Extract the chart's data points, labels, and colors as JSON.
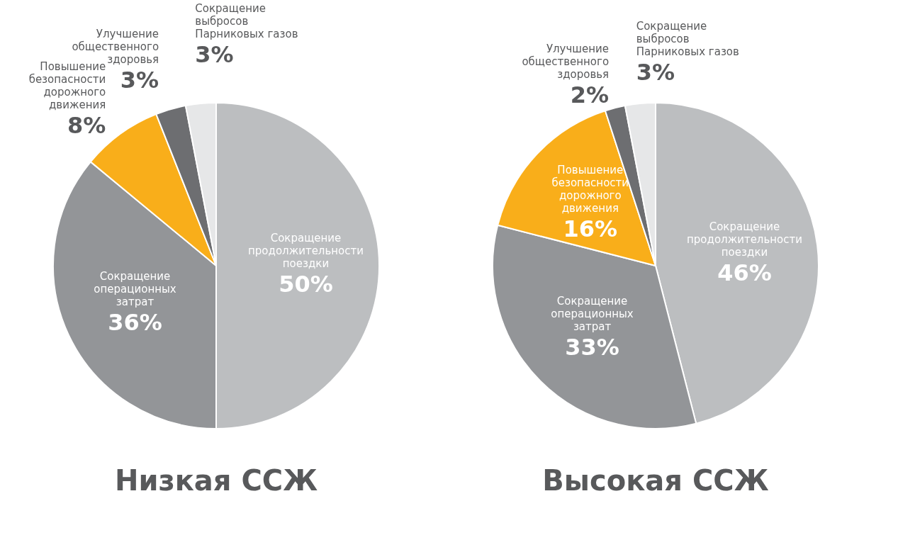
{
  "chart_data": [
    {
      "type": "pie",
      "title": "Низкая ССЖ",
      "legend": false,
      "categories": [
        "Сокращение\nпродолжительности\nпоездки",
        "Сокращение\nоперационных\nзатрат",
        "Повышение\nбезопасности\nдорожного\nдвижения",
        "Улучшение\nобщественного\nздоровья",
        "Сокращение\nвыбросов\nПарниковых газов"
      ],
      "values": [
        50,
        36,
        8,
        3,
        3
      ],
      "value_labels": [
        "50%",
        "36%",
        "8%",
        "3%",
        "3%"
      ],
      "colors": [
        "#bcbec0",
        "#939598",
        "#f9ae1a",
        "#6d6e71",
        "#e6e7e8"
      ]
    },
    {
      "type": "pie",
      "title": "Высокая ССЖ",
      "legend": false,
      "categories": [
        "Сокращение\nпродолжительности\nпоездки",
        "Сокращение\nоперационных\nзатрат",
        "Повышение\nбезопасности\nдорожного\nдвижения",
        "Улучшение\nобщественного\nздоровья",
        "Сокращение\nвыбросов\nПарниковых газов"
      ],
      "values": [
        46,
        33,
        16,
        2,
        3
      ],
      "value_labels": [
        "46%",
        "33%",
        "16%",
        "2%",
        "3%"
      ],
      "colors": [
        "#bcbec0",
        "#939598",
        "#f9ae1a",
        "#6d6e71",
        "#e6e7e8"
      ]
    }
  ]
}
